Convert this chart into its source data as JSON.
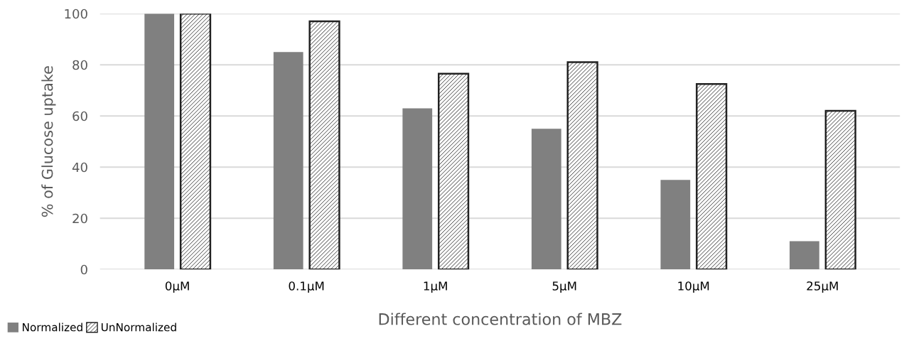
{
  "chart_data": {
    "type": "bar",
    "xlabel": "Different concentration of MBZ",
    "ylabel": "% of Glucose uptake",
    "categories": [
      "0µM",
      "0.1µM",
      "1µM",
      "5µM",
      "10µM",
      "25µM"
    ],
    "series": [
      {
        "name": "Normalized",
        "color": "#808080",
        "values": [
          100,
          85,
          63,
          55,
          35,
          11
        ]
      },
      {
        "name": "UnNormalized",
        "color": "#222222",
        "values": [
          100,
          97,
          76.5,
          81,
          72.5,
          62
        ]
      }
    ],
    "ylim": [
      0,
      100
    ],
    "yticks": [
      0,
      20,
      40,
      60,
      80,
      100
    ],
    "grid": "y",
    "legend": "bottom left"
  }
}
